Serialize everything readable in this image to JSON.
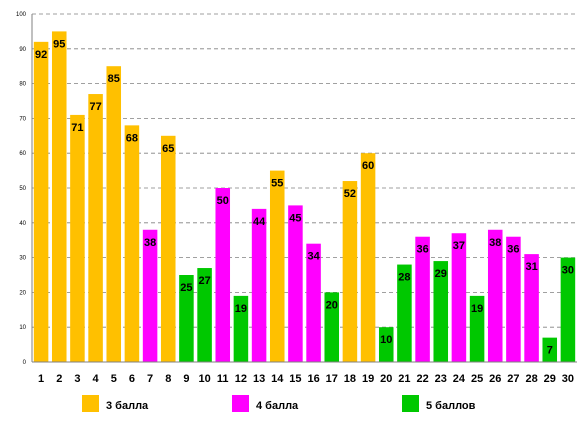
{
  "chart_data": {
    "type": "bar",
    "categories": [
      "1",
      "2",
      "3",
      "4",
      "5",
      "6",
      "7",
      "8",
      "9",
      "10",
      "11",
      "12",
      "13",
      "14",
      "15",
      "16",
      "17",
      "18",
      "19",
      "20",
      "21",
      "22",
      "23",
      "24",
      "25",
      "26",
      "27",
      "28",
      "29",
      "30"
    ],
    "values": [
      92,
      95,
      71,
      77,
      85,
      68,
      38,
      65,
      25,
      27,
      50,
      19,
      44,
      55,
      45,
      34,
      20,
      52,
      60,
      10,
      28,
      36,
      29,
      37,
      19,
      38,
      36,
      31,
      7,
      30
    ],
    "groups": [
      "3",
      "3",
      "3",
      "3",
      "3",
      "3",
      "4",
      "3",
      "5",
      "5",
      "4",
      "5",
      "4",
      "3",
      "4",
      "4",
      "5",
      "3",
      "3",
      "5",
      "5",
      "4",
      "5",
      "4",
      "5",
      "4",
      "4",
      "4",
      "5",
      "5"
    ],
    "legend": [
      {
        "key": "3",
        "name": "3 балла",
        "color": "#FFC000"
      },
      {
        "key": "4",
        "name": "4 балла",
        "color": "#FF00FF"
      },
      {
        "key": "5",
        "name": "5 баллов",
        "color": "#00C800"
      }
    ],
    "yticks": [
      0,
      10,
      20,
      30,
      40,
      50,
      60,
      70,
      80,
      90,
      100
    ],
    "ylim": [
      0,
      100
    ],
    "grid": true,
    "legend_position": "bottom",
    "title": "",
    "xlabel": "",
    "ylabel": ""
  }
}
